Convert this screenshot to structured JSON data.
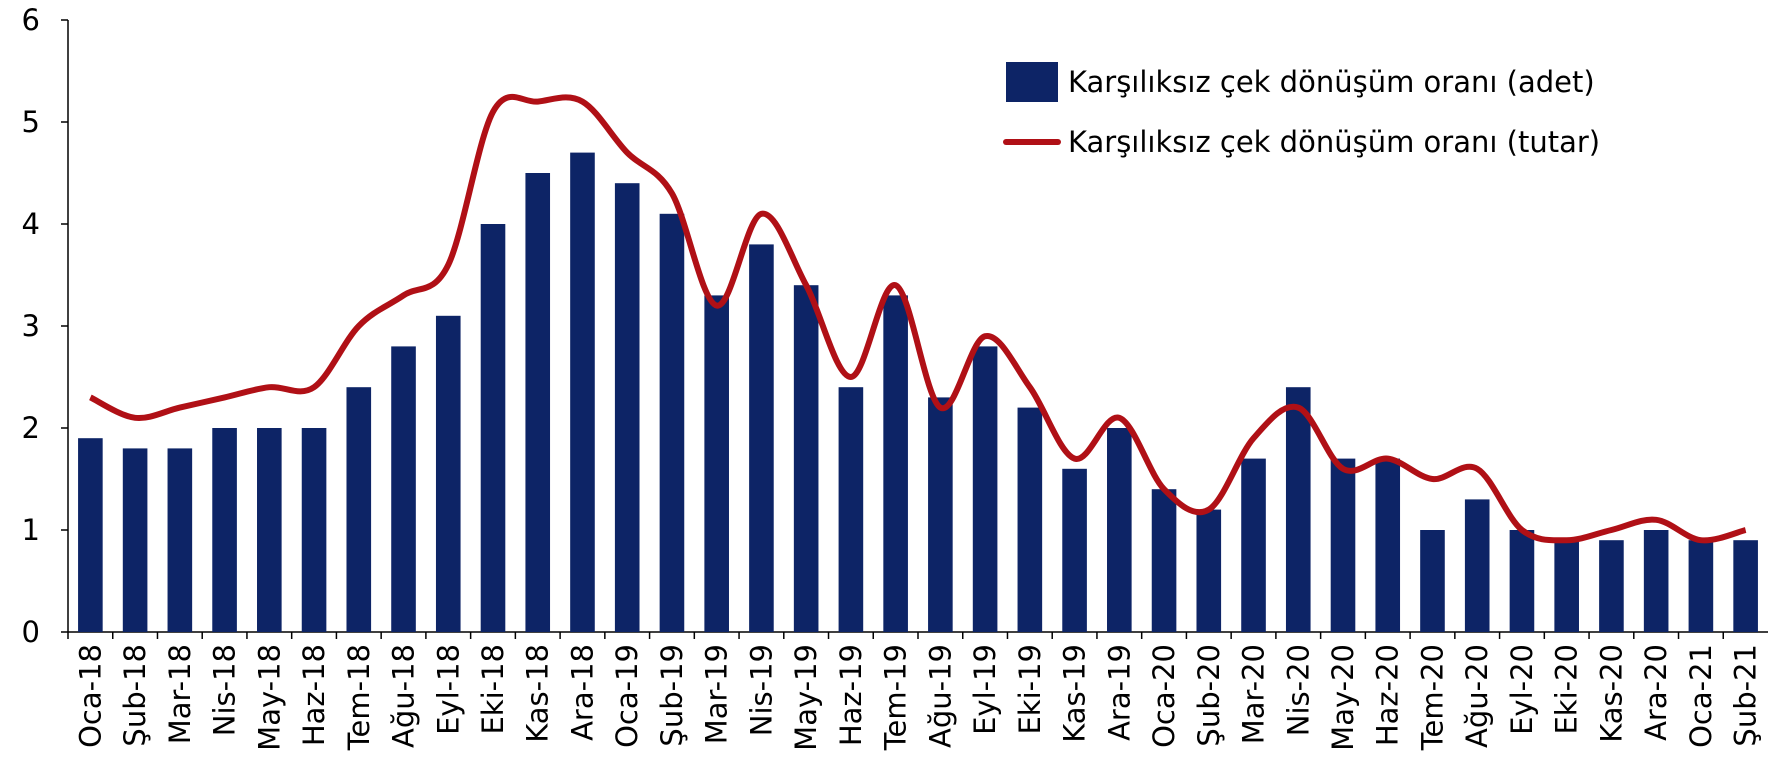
{
  "chart_data": {
    "type": "bar_line",
    "categories": [
      "Oca-18",
      "Şub-18",
      "Mar-18",
      "Nis-18",
      "May-18",
      "Haz-18",
      "Tem-18",
      "Ağu-18",
      "Eyl-18",
      "Eki-18",
      "Kas-18",
      "Ara-18",
      "Oca-19",
      "Şub-19",
      "Mar-19",
      "Nis-19",
      "May-19",
      "Haz-19",
      "Tem-19",
      "Ağu-19",
      "Eyl-19",
      "Eki-19",
      "Kas-19",
      "Ara-19",
      "Oca-20",
      "Şub-20",
      "Mar-20",
      "Nis-20",
      "May-20",
      "Haz-20",
      "Tem-20",
      "Ağu-20",
      "Eyl-20",
      "Eki-20",
      "Kas-20",
      "Ara-20",
      "Oca-21",
      "Şub-21"
    ],
    "series": [
      {
        "name": "Karşılıksız çek dönüşüm oranı (adet)",
        "type": "bar",
        "color": "#0d2466",
        "values": [
          1.9,
          1.8,
          1.8,
          2.0,
          2.0,
          2.0,
          2.4,
          2.8,
          3.1,
          4.0,
          4.5,
          4.7,
          4.4,
          4.1,
          3.3,
          3.8,
          3.4,
          2.4,
          3.3,
          2.3,
          2.8,
          2.2,
          1.6,
          2.0,
          1.4,
          1.2,
          1.7,
          2.4,
          1.7,
          1.7,
          1.0,
          1.3,
          1.0,
          0.9,
          0.9,
          1.0,
          0.9,
          0.9
        ]
      },
      {
        "name": "Karşılıksız çek dönüşüm oranı (tutar)",
        "type": "line",
        "color": "#b01016",
        "values": [
          2.3,
          2.1,
          2.2,
          2.3,
          2.4,
          2.4,
          3.0,
          3.3,
          3.6,
          5.1,
          5.2,
          5.2,
          4.7,
          4.3,
          3.2,
          4.1,
          3.4,
          2.5,
          3.4,
          2.2,
          2.9,
          2.4,
          1.7,
          2.1,
          1.4,
          1.2,
          1.9,
          2.2,
          1.6,
          1.7,
          1.5,
          1.6,
          1.0,
          0.9,
          1.0,
          1.1,
          0.9,
          1.0
        ]
      }
    ],
    "ylim": [
      0,
      6
    ],
    "yticks": [
      0,
      1,
      2,
      3,
      4,
      5,
      6
    ],
    "legend": "upper right"
  }
}
